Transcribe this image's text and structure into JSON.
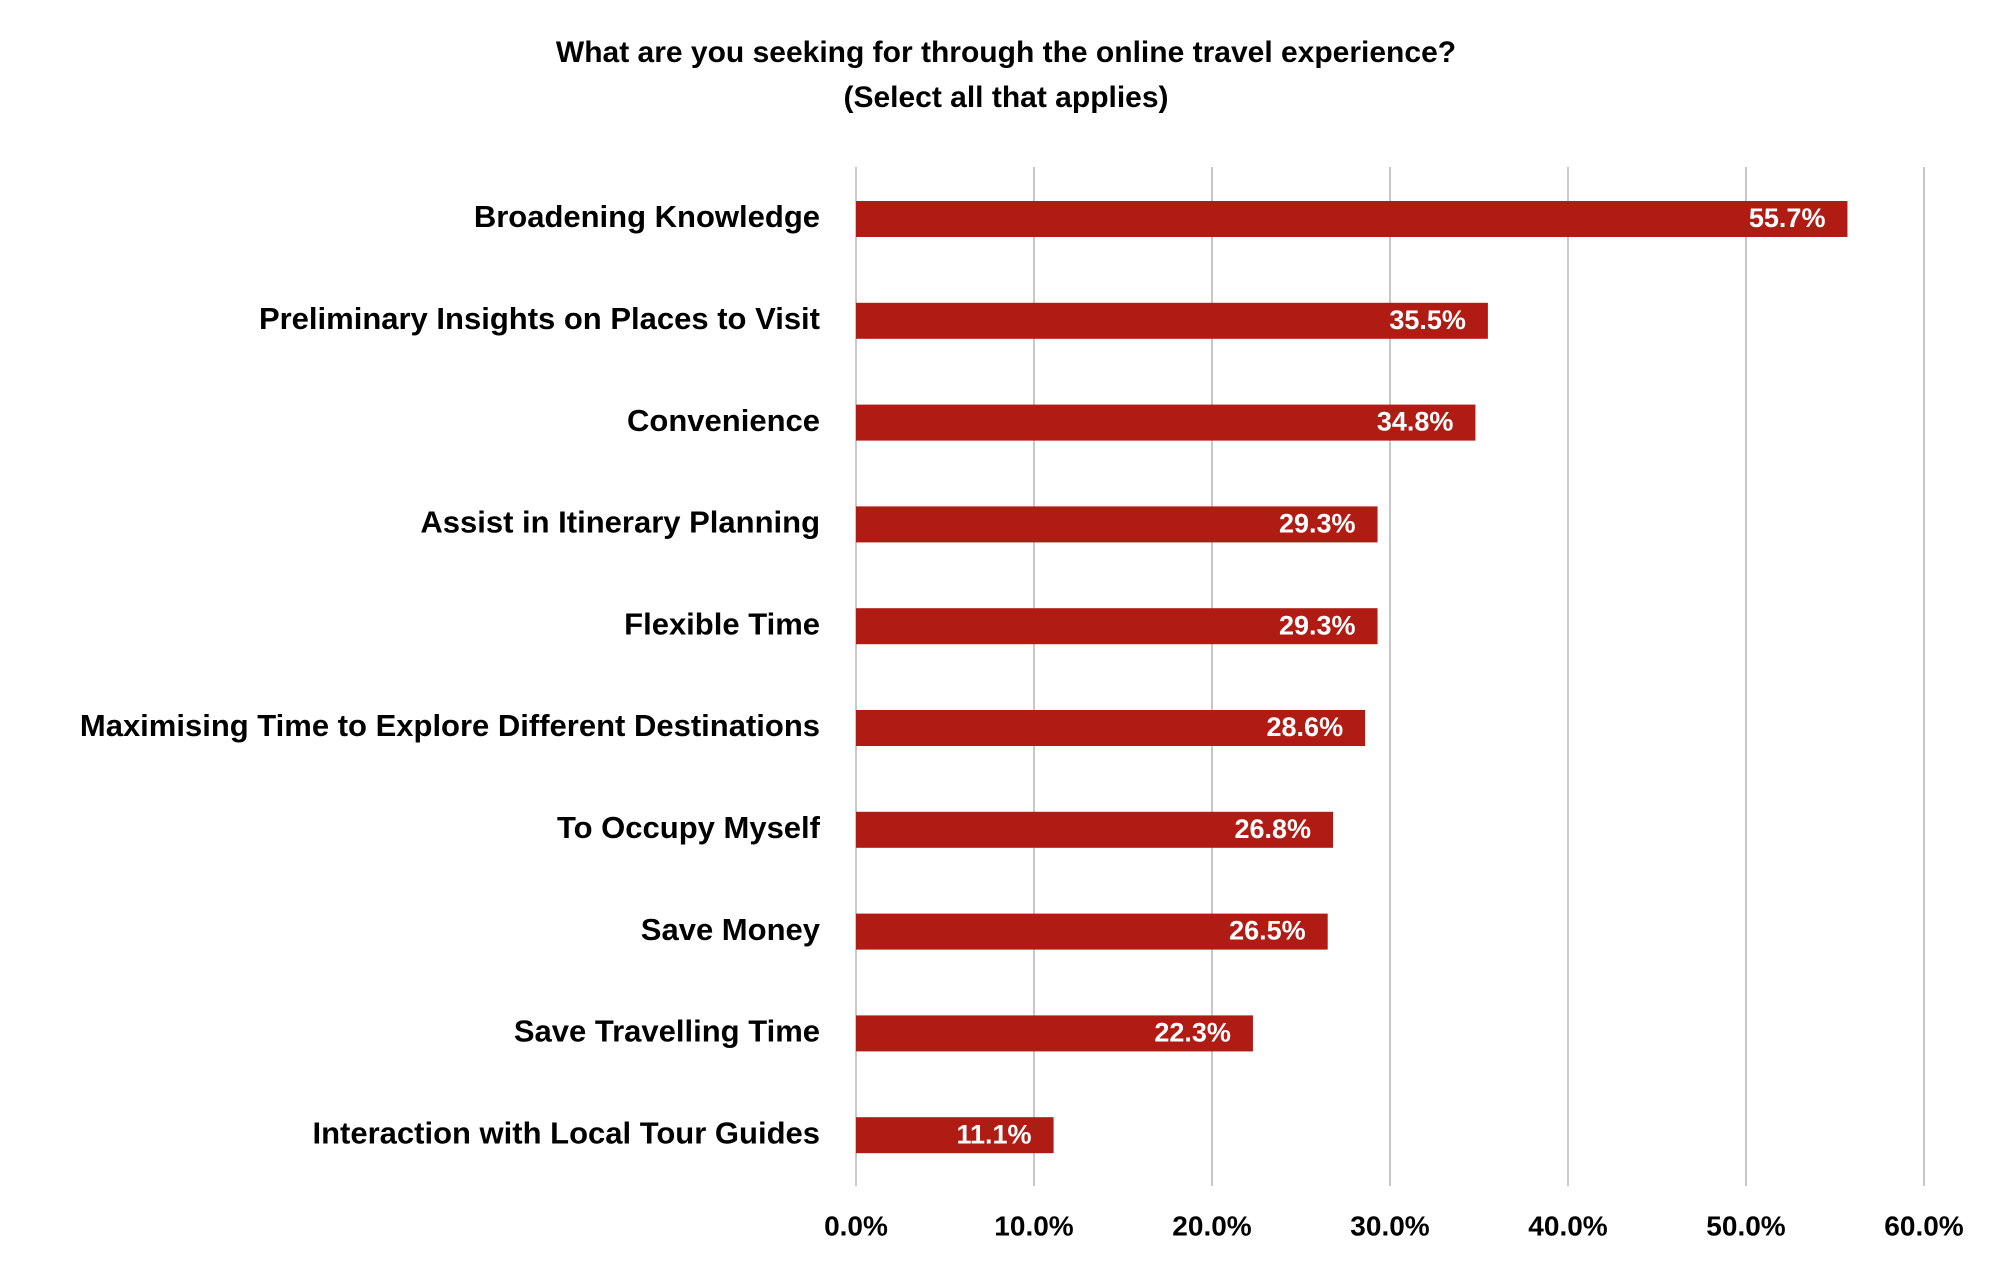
{
  "chart_data": {
    "type": "barh",
    "title": "What are you seeking for through the online travel experience?",
    "subtitle": "(Select all that applies)",
    "categories": [
      "Broadening Knowledge",
      "Preliminary Insights on Places to Visit",
      "Convenience",
      "Assist in Itinerary Planning",
      "Flexible Time",
      "Maximising Time to Explore Different Destinations",
      "To Occupy Myself",
      "Save Money",
      "Save Travelling Time",
      "Interaction with Local Tour Guides"
    ],
    "values": [
      55.7,
      35.5,
      34.8,
      29.3,
      29.3,
      28.6,
      26.8,
      26.5,
      22.3,
      11.1
    ],
    "value_labels": [
      "55.7%",
      "35.5%",
      "34.8%",
      "29.3%",
      "29.3%",
      "28.6%",
      "26.8%",
      "26.5%",
      "22.3%",
      "11.1%"
    ],
    "color": "#b01c14",
    "xlim": [
      0,
      60
    ],
    "xticks": [
      {
        "value": 0,
        "label": "0.0%"
      },
      {
        "value": 10,
        "label": "10.0%"
      },
      {
        "value": 20,
        "label": "20.0%"
      },
      {
        "value": 30,
        "label": "30.0%"
      },
      {
        "value": 40,
        "label": "40.0%"
      },
      {
        "value": 50,
        "label": "50.0%"
      },
      {
        "value": 60,
        "label": "60.0%"
      }
    ],
    "grid": true
  }
}
